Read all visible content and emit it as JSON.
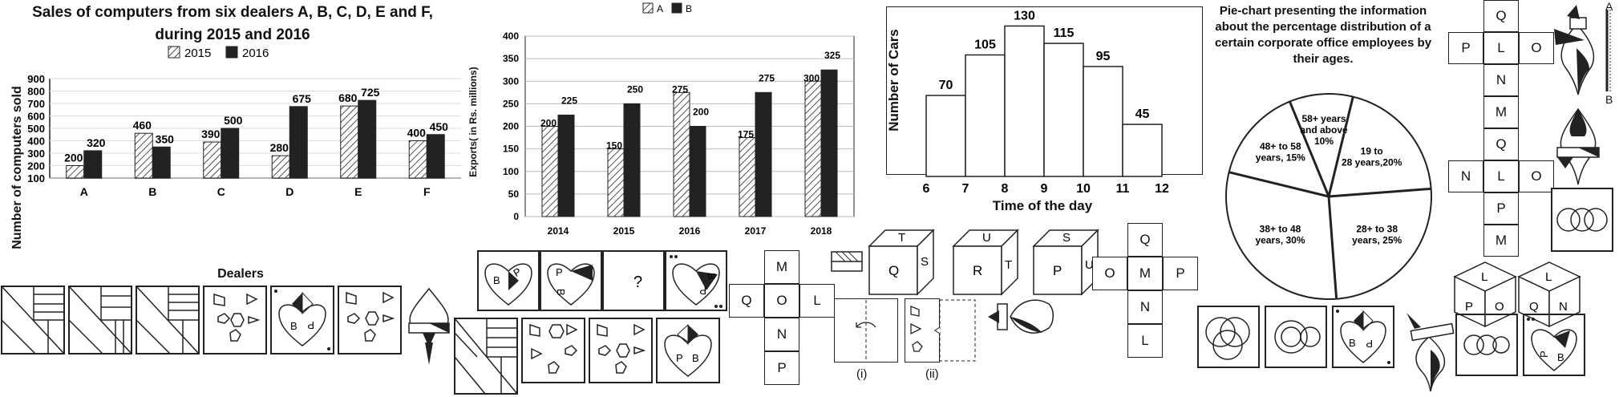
{
  "chart_data": [
    {
      "type": "bar",
      "title": "Sales of computers from six dealers A, B, C, D, E and F, during 2015 and 2016",
      "xlabel": "Dealers",
      "ylabel": "Number of computers sold",
      "categories": [
        "A",
        "B",
        "C",
        "D",
        "E",
        "F"
      ],
      "series": [
        {
          "name": "2015",
          "values": [
            200,
            460,
            390,
            280,
            680,
            400
          ]
        },
        {
          "name": "2016",
          "values": [
            320,
            350,
            500,
            675,
            725,
            450
          ]
        }
      ],
      "ylim": [
        100,
        900
      ],
      "yticks": [
        100,
        200,
        300,
        400,
        500,
        600,
        700,
        800,
        900
      ],
      "legend": "top-center"
    },
    {
      "type": "bar",
      "title": "",
      "xlabel": "",
      "ylabel": "Exports( in Rs. millions)",
      "categories": [
        "2014",
        "2015",
        "2016",
        "2017",
        "2018"
      ],
      "series": [
        {
          "name": "A",
          "values": [
            200,
            150,
            275,
            175,
            300
          ]
        },
        {
          "name": "B",
          "values": [
            225,
            250,
            200,
            275,
            325
          ]
        }
      ],
      "ylim": [
        0,
        400
      ],
      "yticks": [
        0,
        50,
        100,
        150,
        200,
        250,
        300,
        350,
        400
      ],
      "legend": "top-center",
      "grid": true
    },
    {
      "type": "bar",
      "title": "",
      "xlabel": "Time of the day",
      "ylabel": "Number of Cars",
      "categories": [
        "6-7",
        "7-8",
        "8-9",
        "9-10",
        "10-11",
        "11-12"
      ],
      "xticks": [
        "6",
        "7",
        "8",
        "9",
        "10",
        "11",
        "12"
      ],
      "values": [
        70,
        105,
        130,
        115,
        95,
        45
      ],
      "ylim": [
        0,
        140
      ]
    },
    {
      "type": "pie",
      "title": "Pie-chart presenting the information about the percentage distribution of a certain corporate office employees by their ages.",
      "labels": [
        "58+ years and above 10%",
        "19 to 28 years,20%",
        "28+ to 38 years, 25%",
        "38+ to 48 years, 30%",
        "48+ to 58 years, 15%"
      ],
      "values": [
        10,
        20,
        25,
        30,
        15
      ]
    }
  ],
  "puzzles": {
    "question_mark": "?",
    "nets_top": {
      "top": "M",
      "row": [
        "Q",
        "O",
        "L"
      ],
      "below": [
        "N",
        "P"
      ]
    },
    "cube1": {
      "top": "T",
      "front": "Q",
      "side": "S"
    },
    "cube2": {
      "top": "U",
      "front": "R",
      "side": "T"
    },
    "cube3": {
      "top": "S",
      "front": "P",
      "side": "U"
    },
    "net_right": {
      "top": "Q",
      "row": [
        "O",
        "M",
        "P"
      ],
      "below": [
        "N",
        "L"
      ]
    },
    "net_far1": {
      "top": "Q",
      "row": [
        "P",
        "L",
        "O"
      ],
      "below": [
        "N",
        "M"
      ]
    },
    "net_far2": {
      "top": "Q",
      "row": [
        "N",
        "L",
        "O"
      ],
      "below": [
        "P",
        "M"
      ]
    },
    "cube4": {
      "top": "L",
      "front": "P",
      "side": "O"
    },
    "cube5": {
      "top": "L",
      "front": "Q",
      "side": "N"
    },
    "fold_i": "(i)",
    "fold_ii": "(ii)",
    "mirror_a": "A",
    "mirror_b": "B",
    "heart_letters": {
      "b": "B",
      "p": "P"
    }
  }
}
